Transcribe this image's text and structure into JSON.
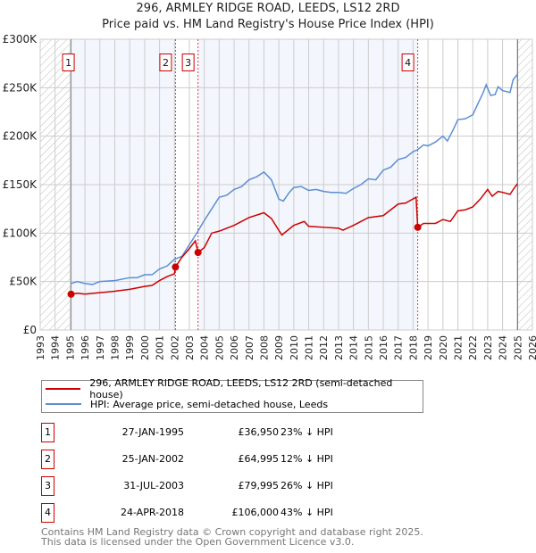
{
  "title": "296, ARMLEY RIDGE ROAD, LEEDS, LS12 2RD",
  "subtitle": "Price paid vs. HM Land Registry's House Price Index (HPI)",
  "chart_data": {
    "type": "line",
    "title": "296, ARMLEY RIDGE ROAD, LEEDS, LS12 2RD",
    "xlim": [
      1993,
      2026
    ],
    "ylim": [
      0,
      300000
    ],
    "x_ticks": [
      "1993",
      "1994",
      "1995",
      "1996",
      "1997",
      "1998",
      "1999",
      "2000",
      "2001",
      "2002",
      "2003",
      "2004",
      "2005",
      "2006",
      "2007",
      "2008",
      "2009",
      "2010",
      "2011",
      "2012",
      "2013",
      "2014",
      "2015",
      "2016",
      "2017",
      "2018",
      "2019",
      "2020",
      "2021",
      "2022",
      "2023",
      "2024",
      "2025",
      "2026"
    ],
    "y_ticks": [
      {
        "v": 0,
        "label": "£0"
      },
      {
        "v": 50000,
        "label": "£50K"
      },
      {
        "v": 100000,
        "label": "£100K"
      },
      {
        "v": 150000,
        "label": "£150K"
      },
      {
        "v": 200000,
        "label": "£200K"
      },
      {
        "v": 250000,
        "label": "£250K"
      },
      {
        "v": 300000,
        "label": "£300K"
      }
    ],
    "grid": true,
    "data_range": [
      1995.07,
      2025.0
    ],
    "series": [
      {
        "name": "296, ARMLEY RIDGE ROAD, LEEDS, LS12 2RD (semi-detached house)",
        "color": "#cc0000",
        "points": [
          [
            1995.07,
            36950
          ],
          [
            1995.5,
            38000
          ],
          [
            1996,
            37000
          ],
          [
            1997,
            38500
          ],
          [
            1998,
            40000
          ],
          [
            1999,
            42000
          ],
          [
            2000,
            45000
          ],
          [
            2000.5,
            46000
          ],
          [
            2001,
            51000
          ],
          [
            2001.5,
            55000
          ],
          [
            2002,
            58000
          ],
          [
            2002.07,
            64995
          ],
          [
            2002.5,
            75000
          ],
          [
            2003,
            84000
          ],
          [
            2003.4,
            92000
          ],
          [
            2003.58,
            79995
          ],
          [
            2004,
            85000
          ],
          [
            2004.5,
            100000
          ],
          [
            2005,
            102000
          ],
          [
            2006,
            108000
          ],
          [
            2007,
            116000
          ],
          [
            2008,
            121000
          ],
          [
            2008.5,
            115000
          ],
          [
            2009.2,
            98000
          ],
          [
            2010,
            108000
          ],
          [
            2010.7,
            112000
          ],
          [
            2011,
            107000
          ],
          [
            2012,
            106000
          ],
          [
            2013,
            105000
          ],
          [
            2013.3,
            103000
          ],
          [
            2014,
            108000
          ],
          [
            2015,
            116000
          ],
          [
            2016,
            118000
          ],
          [
            2016.5,
            124000
          ],
          [
            2017,
            130000
          ],
          [
            2017.5,
            131000
          ],
          [
            2018.2,
            137000
          ],
          [
            2018.31,
            106000
          ],
          [
            2018.7,
            110000
          ],
          [
            2019.5,
            110000
          ],
          [
            2020,
            114000
          ],
          [
            2020.5,
            112000
          ],
          [
            2021,
            123000
          ],
          [
            2021.5,
            124000
          ],
          [
            2022,
            127000
          ],
          [
            2022.5,
            135000
          ],
          [
            2023,
            145000
          ],
          [
            2023.3,
            138000
          ],
          [
            2023.7,
            143000
          ],
          [
            2024,
            142000
          ],
          [
            2024.5,
            140000
          ],
          [
            2024.8,
            147000
          ],
          [
            2025,
            151000
          ]
        ]
      },
      {
        "name": "HPI: Average price, semi-detached house, Leeds",
        "color": "#5b8fd4",
        "points": [
          [
            1995.07,
            48000
          ],
          [
            1995.5,
            50000
          ],
          [
            1996,
            48000
          ],
          [
            1996.5,
            47000
          ],
          [
            1997,
            50000
          ],
          [
            1998,
            51000
          ],
          [
            1999,
            54000
          ],
          [
            1999.5,
            54000
          ],
          [
            2000,
            57000
          ],
          [
            2000.5,
            57000
          ],
          [
            2001,
            63000
          ],
          [
            2001.5,
            66000
          ],
          [
            2002,
            73000
          ],
          [
            2002.5,
            76000
          ],
          [
            2003,
            88000
          ],
          [
            2003.5,
            100000
          ],
          [
            2004,
            113000
          ],
          [
            2004.5,
            125000
          ],
          [
            2005,
            137000
          ],
          [
            2005.5,
            139000
          ],
          [
            2006,
            145000
          ],
          [
            2006.5,
            148000
          ],
          [
            2007,
            155000
          ],
          [
            2007.5,
            158000
          ],
          [
            2008,
            163000
          ],
          [
            2008.5,
            155000
          ],
          [
            2009,
            135000
          ],
          [
            2009.3,
            133000
          ],
          [
            2009.7,
            142000
          ],
          [
            2010,
            147000
          ],
          [
            2010.5,
            148000
          ],
          [
            2011,
            144000
          ],
          [
            2011.5,
            145000
          ],
          [
            2012,
            143000
          ],
          [
            2012.5,
            142000
          ],
          [
            2013,
            142000
          ],
          [
            2013.5,
            141000
          ],
          [
            2014,
            146000
          ],
          [
            2014.5,
            150000
          ],
          [
            2015,
            156000
          ],
          [
            2015.5,
            155000
          ],
          [
            2016,
            165000
          ],
          [
            2016.5,
            168000
          ],
          [
            2017,
            176000
          ],
          [
            2017.5,
            178000
          ],
          [
            2018,
            184000
          ],
          [
            2018.3,
            186000
          ],
          [
            2018.7,
            191000
          ],
          [
            2019,
            190000
          ],
          [
            2019.5,
            194000
          ],
          [
            2020,
            200000
          ],
          [
            2020.3,
            195000
          ],
          [
            2020.7,
            207000
          ],
          [
            2021,
            217000
          ],
          [
            2021.5,
            218000
          ],
          [
            2022,
            222000
          ],
          [
            2022.3,
            232000
          ],
          [
            2022.7,
            245000
          ],
          [
            2022.9,
            253000
          ],
          [
            2023.2,
            242000
          ],
          [
            2023.5,
            243000
          ],
          [
            2023.7,
            251000
          ],
          [
            2024,
            247000
          ],
          [
            2024.5,
            245000
          ],
          [
            2024.7,
            258000
          ],
          [
            2025,
            264000
          ]
        ]
      }
    ],
    "sales": [
      {
        "id": "1",
        "x": 1995.07,
        "value": 36950
      },
      {
        "id": "2",
        "x": 2002.07,
        "value": 64995
      },
      {
        "id": "3",
        "x": 2003.58,
        "value": 79995
      },
      {
        "id": "4",
        "x": 2018.31,
        "value": 106000
      }
    ]
  },
  "legend": {
    "property": "296, ARMLEY RIDGE ROAD, LEEDS, LS12 2RD (semi-detached house)",
    "hpi": "HPI: Average price, semi-detached house, Leeds"
  },
  "transactions": [
    {
      "id": "1",
      "date": "27-JAN-1995",
      "price": "£36,950",
      "hpi": "23% ↓ HPI"
    },
    {
      "id": "2",
      "date": "25-JAN-2002",
      "price": "£64,995",
      "hpi": "12% ↓ HPI"
    },
    {
      "id": "3",
      "date": "31-JUL-2003",
      "price": "£79,995",
      "hpi": "26% ↓ HPI"
    },
    {
      "id": "4",
      "date": "24-APR-2018",
      "price": "£106,000",
      "hpi": "43% ↓ HPI"
    }
  ],
  "footer": {
    "line1": "Contains HM Land Registry data © Crown copyright and database right 2025.",
    "line2": "This data is licensed under the Open Government Licence v3.0."
  }
}
